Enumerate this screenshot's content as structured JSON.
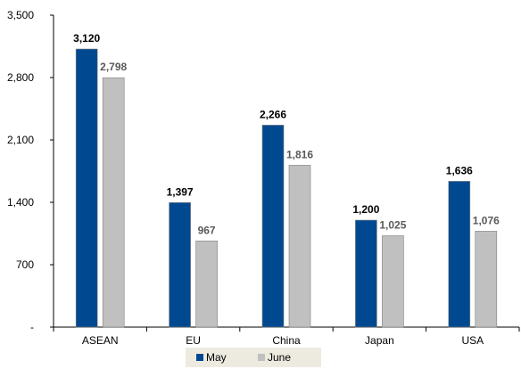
{
  "chart_data": {
    "type": "bar",
    "categories": [
      "ASEAN",
      "EU",
      "China",
      "Japan",
      "USA"
    ],
    "series": [
      {
        "name": "May",
        "values": [
          3120,
          1397,
          2266,
          1200,
          1636
        ],
        "data_labels": [
          "3,120",
          "1,397",
          "2,266",
          "1,200",
          "1,636"
        ],
        "color": "#004990",
        "label_color": "#000000"
      },
      {
        "name": "June",
        "values": [
          2798,
          967,
          1816,
          1025,
          1076
        ],
        "data_labels": [
          "2,798",
          "967",
          "1,816",
          "1,025",
          "1,076"
        ],
        "color": "#C0C0C0",
        "label_color": "#595959"
      }
    ],
    "yaxis": {
      "ticks": [
        0,
        700,
        1400,
        2100,
        2800,
        3500
      ],
      "tick_labels": [
        "-",
        "700",
        "1,400",
        "2,100",
        "2,800",
        "3,500"
      ]
    },
    "ylim": [
      0,
      3500
    ],
    "grid": false,
    "legend_placement": "bottom-center",
    "legend_bg": "#EDEBE0",
    "title": "",
    "xlabel": "",
    "ylabel": ""
  }
}
